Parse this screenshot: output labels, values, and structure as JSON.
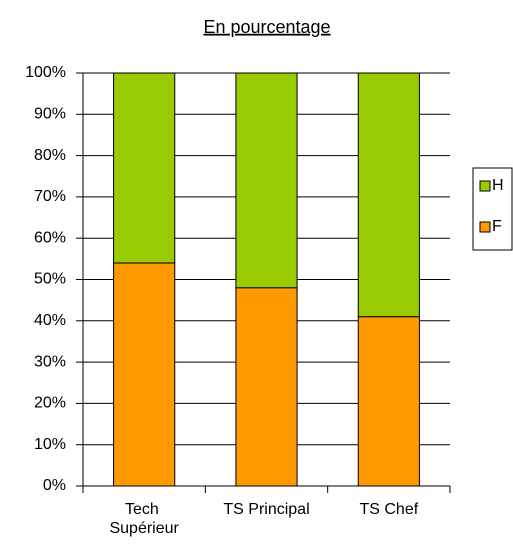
{
  "chart_data": {
    "type": "stacked_bar",
    "title": "En pourcentage",
    "categories": [
      "Tech Supérieur",
      "TS Principal",
      "TS Chef"
    ],
    "series": [
      {
        "name": "F",
        "color": "#ff9900",
        "values": [
          54,
          48,
          41
        ]
      },
      {
        "name": "H",
        "color": "#99cc00",
        "values": [
          46,
          52,
          59
        ]
      }
    ],
    "ylim": [
      0,
      100
    ],
    "yticks": [
      {
        "value": 0,
        "label": "0%"
      },
      {
        "value": 10,
        "label": "10%"
      },
      {
        "value": 20,
        "label": "20%"
      },
      {
        "value": 30,
        "label": "30%"
      },
      {
        "value": 40,
        "label": "40%"
      },
      {
        "value": 50,
        "label": "50%"
      },
      {
        "value": 60,
        "label": "60%"
      },
      {
        "value": 70,
        "label": "70%"
      },
      {
        "value": 80,
        "label": "80%"
      },
      {
        "value": 90,
        "label": "90%"
      },
      {
        "value": 100,
        "label": "100%"
      }
    ],
    "grid": true,
    "legend": "right"
  }
}
